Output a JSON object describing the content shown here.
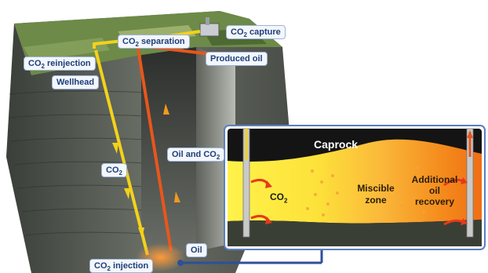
{
  "labels": {
    "co2_capture": {
      "main": "CO",
      "sub": "2",
      "rest": " capture"
    },
    "co2_separation": {
      "main": "CO",
      "sub": "2",
      "rest": " separation"
    },
    "co2_reinjection": {
      "main": "CO",
      "sub": "2",
      "rest": " reinjection"
    },
    "wellhead": "Wellhead",
    "produced_oil": "Produced oil",
    "oil_and_co2": {
      "main": "Oil and CO",
      "sub": "2",
      "rest": ""
    },
    "co2_left": {
      "main": "CO",
      "sub": "2",
      "rest": ""
    },
    "oil": "Oil",
    "co2_injection": {
      "main": "CO",
      "sub": "2",
      "rest": " injection"
    }
  },
  "inset": {
    "caprock": "Caprock",
    "co2": {
      "main": "CO",
      "sub": "2"
    },
    "miscible_zone": [
      "Miscible",
      "zone"
    ],
    "additional_recovery": [
      "Additional",
      "oil",
      "recovery"
    ]
  },
  "colors": {
    "co2_pipe": "#f2d21b",
    "oil_pipe": "#e8561c",
    "label_text": "#1d3f7a",
    "inset_border": "#5a7fc0",
    "connector": "#2f4f9a"
  }
}
